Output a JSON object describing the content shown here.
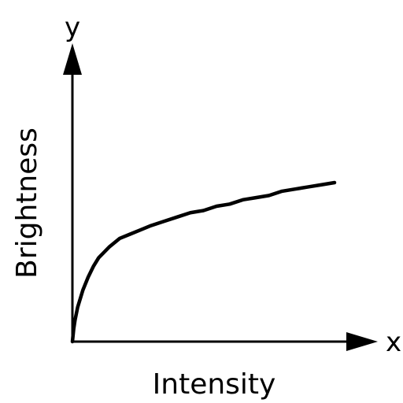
{
  "chart_data": {
    "type": "line",
    "title": "",
    "xlabel": "Intensity",
    "ylabel": "Brightness",
    "x_axis_letter": "x",
    "y_axis_letter": "y",
    "xlim": [
      0,
      1
    ],
    "ylim": [
      0,
      1
    ],
    "grid": false,
    "series": [
      {
        "color": "#000000",
        "x": [
          0,
          0.005,
          0.01,
          0.02,
          0.04,
          0.06,
          0.08,
          0.1,
          0.14,
          0.18,
          0.22,
          0.26,
          0.3,
          0.35,
          0.4,
          0.45,
          0.5,
          0.55,
          0.6,
          0.65,
          0.7,
          0.75,
          0.8,
          0.85,
          0.9,
          0.95,
          1.0
        ],
        "y": [
          0,
          0.06,
          0.1,
          0.16,
          0.24,
          0.3,
          0.35,
          0.39,
          0.44,
          0.48,
          0.5,
          0.52,
          0.54,
          0.56,
          0.58,
          0.6,
          0.61,
          0.63,
          0.64,
          0.66,
          0.67,
          0.68,
          0.7,
          0.71,
          0.72,
          0.73,
          0.74
        ]
      }
    ]
  }
}
